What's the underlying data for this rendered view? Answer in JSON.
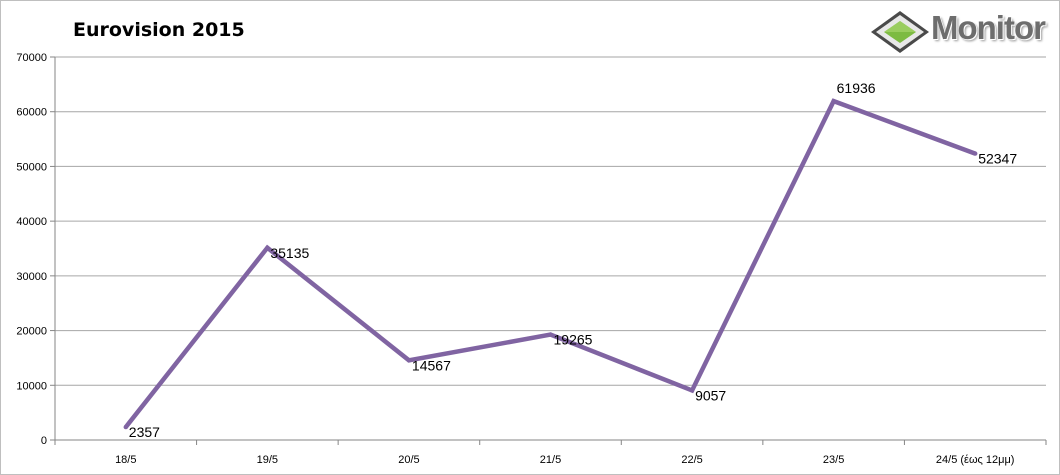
{
  "chart_data": {
    "type": "line",
    "title": "Eurovision 2015",
    "categories": [
      "18/5",
      "19/5",
      "20/5",
      "21/5",
      "22/5",
      "23/5",
      "24/5 (έως 12μμ)"
    ],
    "values": [
      2357,
      35135,
      14567,
      19265,
      9057,
      61936,
      52347
    ],
    "ylim": [
      0,
      70000
    ],
    "yticks": [
      "0",
      "10000",
      "20000",
      "30000",
      "40000",
      "50000",
      "60000",
      "70000"
    ],
    "xlabel": "",
    "ylabel": "",
    "grid": true,
    "legend": "none",
    "line_color": "#8064a2"
  },
  "logo": {
    "text": "Monitor",
    "colors": {
      "diamond": "#7dbb42",
      "frame": "#555555",
      "text": "#6d6d6d"
    }
  }
}
